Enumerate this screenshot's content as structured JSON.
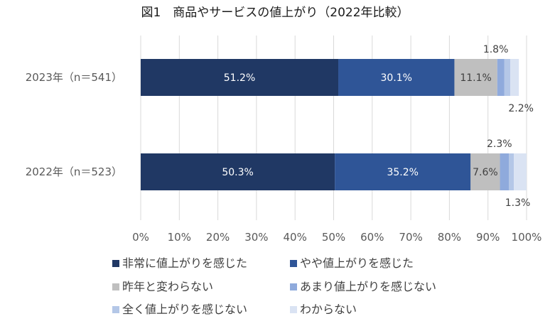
{
  "chart_data": {
    "type": "bar",
    "orientation": "horizontal",
    "stacked": true,
    "title": "図1　商品やサービスの値上がり（2022年比較）",
    "categories": [
      "2023年（n＝541）",
      "2022年（n＝523）"
    ],
    "series": [
      {
        "name": "非常に値上がりを感じた",
        "color": "#203864",
        "values": [
          51.2,
          50.3
        ]
      },
      {
        "name": "やや値上がりを感じた",
        "color": "#2f5597",
        "values": [
          30.1,
          35.2
        ]
      },
      {
        "name": "昨年と変わらない",
        "color": "#bfbfbf",
        "values": [
          11.1,
          7.6
        ]
      },
      {
        "name": "あまり値上がりを感じない",
        "color": "#8faadc",
        "values": [
          1.8,
          2.3
        ]
      },
      {
        "name": "全く値上がりを感じない",
        "color": "#b4c7e7",
        "values": [
          1.6,
          1.3
        ]
      },
      {
        "name": "わからない",
        "color": "#dae3f3",
        "values": [
          2.2,
          3.3
        ]
      }
    ],
    "data_labels": [
      {
        "category": 0,
        "series": 0,
        "text": "51.2%",
        "position": "inside"
      },
      {
        "category": 0,
        "series": 1,
        "text": "30.1%",
        "position": "inside"
      },
      {
        "category": 0,
        "series": 2,
        "text": "11.1%",
        "position": "inside"
      },
      {
        "category": 0,
        "series": 3,
        "text": "1.8%",
        "position": "above"
      },
      {
        "category": 0,
        "series": 5,
        "text": "2.2%",
        "position": "below"
      },
      {
        "category": 1,
        "series": 0,
        "text": "50.3%",
        "position": "inside"
      },
      {
        "category": 1,
        "series": 1,
        "text": "35.2%",
        "position": "inside"
      },
      {
        "category": 1,
        "series": 2,
        "text": "7.6%",
        "position": "inside"
      },
      {
        "category": 1,
        "series": 3,
        "text": "2.3%",
        "position": "above"
      },
      {
        "category": 1,
        "series": 4,
        "text": "1.3%",
        "position": "below"
      }
    ],
    "xlim": [
      0,
      100
    ],
    "xticks": [
      "0%",
      "10%",
      "20%",
      "30%",
      "40%",
      "50%",
      "60%",
      "70%",
      "80%",
      "90%",
      "100%"
    ],
    "grid": true,
    "legend_position": "bottom"
  }
}
